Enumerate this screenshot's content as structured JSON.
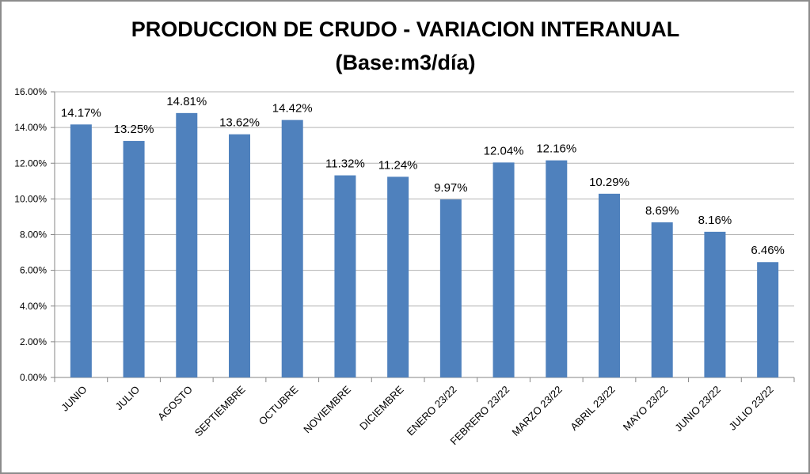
{
  "chart_data": {
    "type": "bar",
    "title": "PRODUCCION DE CRUDO - VARIACION INTERANUAL",
    "subtitle": "(Base:m3/día)",
    "xlabel": "",
    "ylabel": "",
    "ylim": [
      0,
      16
    ],
    "yticks": [
      "0.00%",
      "2.00%",
      "4.00%",
      "6.00%",
      "8.00%",
      "10.00%",
      "12.00%",
      "14.00%",
      "16.00%"
    ],
    "grid": true,
    "legend": "none",
    "categories": [
      "JUNIO",
      "JULIO",
      "AGOSTO",
      "SEPTIEMBRE",
      "OCTUBRE",
      "NOVIEMBRE",
      "DICIEMBRE",
      "ENERO 23/22",
      "FEBRERO 23/22",
      "MARZO 23/22",
      "ABRIL 23/22",
      "MAYO 23/22",
      "JUNIO 23/22",
      "JULIO 23/22"
    ],
    "values": [
      14.17,
      13.25,
      14.81,
      13.62,
      14.42,
      11.32,
      11.24,
      9.97,
      12.04,
      12.16,
      10.29,
      8.69,
      8.16,
      6.46
    ],
    "labels": [
      "14.17%",
      "13.25%",
      "14.81%",
      "13.62%",
      "14.42%",
      "11.32%",
      "11.24%",
      "9.97%",
      "12.04%",
      "12.16%",
      "10.29%",
      "8.69%",
      "8.16%",
      "6.46%"
    ],
    "bar_color": "#4f81bd",
    "grid_color": "#b3b3b3"
  }
}
